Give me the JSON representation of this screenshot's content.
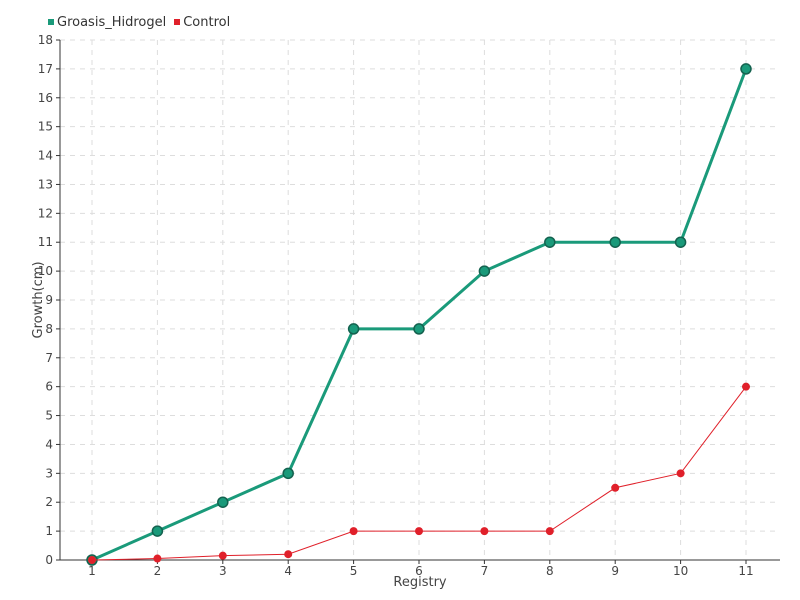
{
  "chart_data": {
    "type": "line",
    "title": "",
    "xlabel": "Registry",
    "ylabel": "Growth(cm)",
    "x": [
      1,
      2,
      3,
      4,
      5,
      6,
      7,
      8,
      9,
      10,
      11
    ],
    "ylim": [
      0,
      18
    ],
    "yticks": [
      0,
      1,
      2,
      3,
      4,
      5,
      6,
      7,
      8,
      9,
      10,
      11,
      12,
      13,
      14,
      15,
      16,
      17,
      18
    ],
    "grid": true,
    "legend_position": "top-left",
    "series": [
      {
        "name": "Groasis_Hidrogel",
        "color": "#1a9a7a",
        "values": [
          0,
          1,
          2,
          3,
          8,
          8,
          10,
          11,
          11,
          11,
          17
        ]
      },
      {
        "name": "Control",
        "color": "#e0202a",
        "values": [
          0,
          0.05,
          0.15,
          0.2,
          1,
          1,
          1,
          1,
          2.5,
          3,
          6
        ]
      }
    ]
  }
}
